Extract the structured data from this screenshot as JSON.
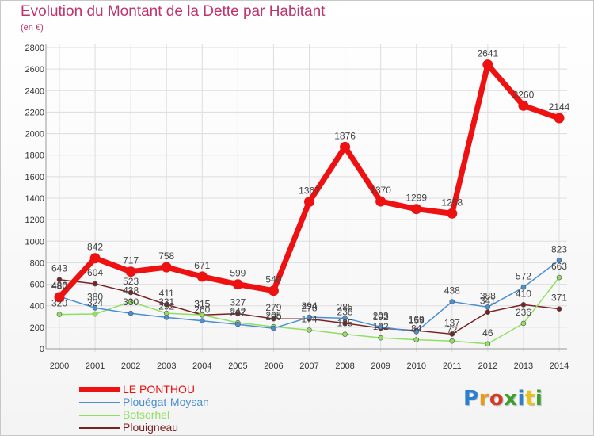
{
  "title": "Evolution du Montant de la Dette par Habitant",
  "subtitle": "(en €)",
  "logo_text": "Proxiti",
  "chart_data": {
    "type": "line",
    "title": "Evolution du Montant de la Dette par Habitant",
    "subtitle": "(en €)",
    "xlabel": "",
    "ylabel": "",
    "x": [
      "2000",
      "2001",
      "2002",
      "2003",
      "2004",
      "2005",
      "2006",
      "2007",
      "2008",
      "2009",
      "2010",
      "2011",
      "2012",
      "2013",
      "2014"
    ],
    "ylim": [
      0,
      2800
    ],
    "yticks": [
      "0",
      "200",
      "400",
      "600",
      "800",
      "1000",
      "1200",
      "1400",
      "1600",
      "1800",
      "2000",
      "2200",
      "2400",
      "2600",
      "2800"
    ],
    "grid": true,
    "legend": "bottom-left",
    "series": [
      {
        "name": "LE PONTHOU",
        "color": "#ee1111",
        "values": [
          480,
          842,
          717,
          758,
          671,
          599,
          540,
          1367,
          1876,
          1370,
          1299,
          1258,
          2641,
          2260,
          2144
        ],
        "labels": [
          "480",
          "842",
          "717",
          "758",
          "671",
          "599",
          "540",
          "1367",
          "1876",
          "1370",
          "1299",
          "1258",
          "2641",
          "2260",
          "2144"
        ]
      },
      {
        "name": "Plouégat-Moysan",
        "color": "#4a8ed4",
        "values": [
          486,
          380,
          330,
          292,
          260,
          227,
          190,
          294,
          285,
          203,
          159,
          438,
          388,
          572,
          823
        ],
        "labels": [
          "486",
          "380",
          "330",
          "292",
          "260",
          "227",
          "190",
          "294",
          "285",
          "203",
          "159",
          "438",
          "388",
          "572",
          "823"
        ]
      },
      {
        "name": "Botsorhel",
        "color": "#8fe060",
        "values": [
          320,
          324,
          438,
          331,
          315,
          242,
          205,
          174,
          135,
          102,
          84,
          72,
          46,
          236,
          663
        ],
        "labels": [
          "320",
          "324",
          "438",
          "331",
          "315",
          "242",
          "205",
          "174",
          "135",
          "102",
          "84",
          "72",
          "46",
          "236",
          "663"
        ]
      },
      {
        "name": "Plouigneau",
        "color": "#7a2222",
        "values": [
          643,
          604,
          523,
          411,
          315,
          327,
          279,
          278,
          238,
          192,
          169,
          137,
          341,
          410,
          371
        ],
        "labels": [
          "643",
          "604",
          "523",
          "411",
          "315",
          "327",
          "279",
          "278",
          "238",
          "192",
          "169",
          "137",
          "341",
          "410",
          "371"
        ]
      }
    ]
  }
}
